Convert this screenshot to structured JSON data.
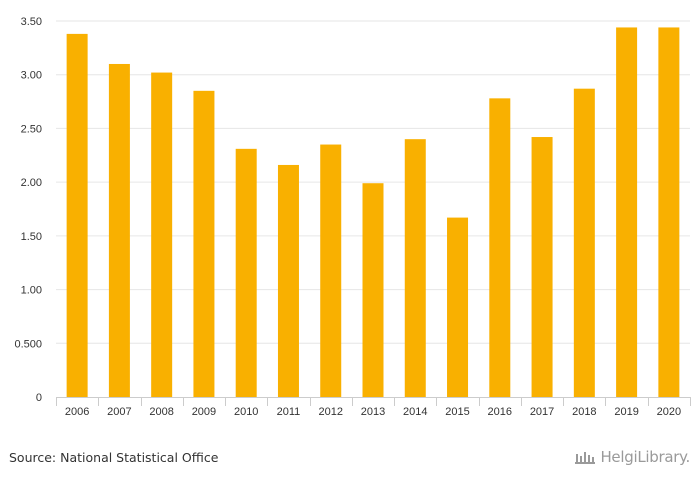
{
  "chart_data": {
    "type": "bar",
    "categories": [
      "2006",
      "2007",
      "2008",
      "2009",
      "2010",
      "2011",
      "2012",
      "2013",
      "2014",
      "2015",
      "2016",
      "2017",
      "2018",
      "2019",
      "2020"
    ],
    "values": [
      3.38,
      3.1,
      3.02,
      2.85,
      2.31,
      2.16,
      2.35,
      1.99,
      2.4,
      1.67,
      2.78,
      2.42,
      2.87,
      3.44,
      3.44
    ],
    "ylim": [
      0,
      3.5
    ],
    "yticks": [
      0,
      0.5,
      1.0,
      1.5,
      2.0,
      2.5,
      3.0,
      3.5
    ],
    "ytick_labels": [
      "0",
      "0.500",
      "1.00",
      "1.50",
      "2.00",
      "2.50",
      "3.00",
      "3.50"
    ],
    "title": "",
    "xlabel": "",
    "ylabel": "",
    "grid": true,
    "bar_color": "#F9B000"
  },
  "footer": {
    "source": "Source: National Statistical Office",
    "brand": "HelgiLibrary."
  },
  "colors": {
    "grid": "#e6e6e6",
    "axis": "#cccccc",
    "text": "#333333",
    "brand": "#9a9a9a"
  }
}
